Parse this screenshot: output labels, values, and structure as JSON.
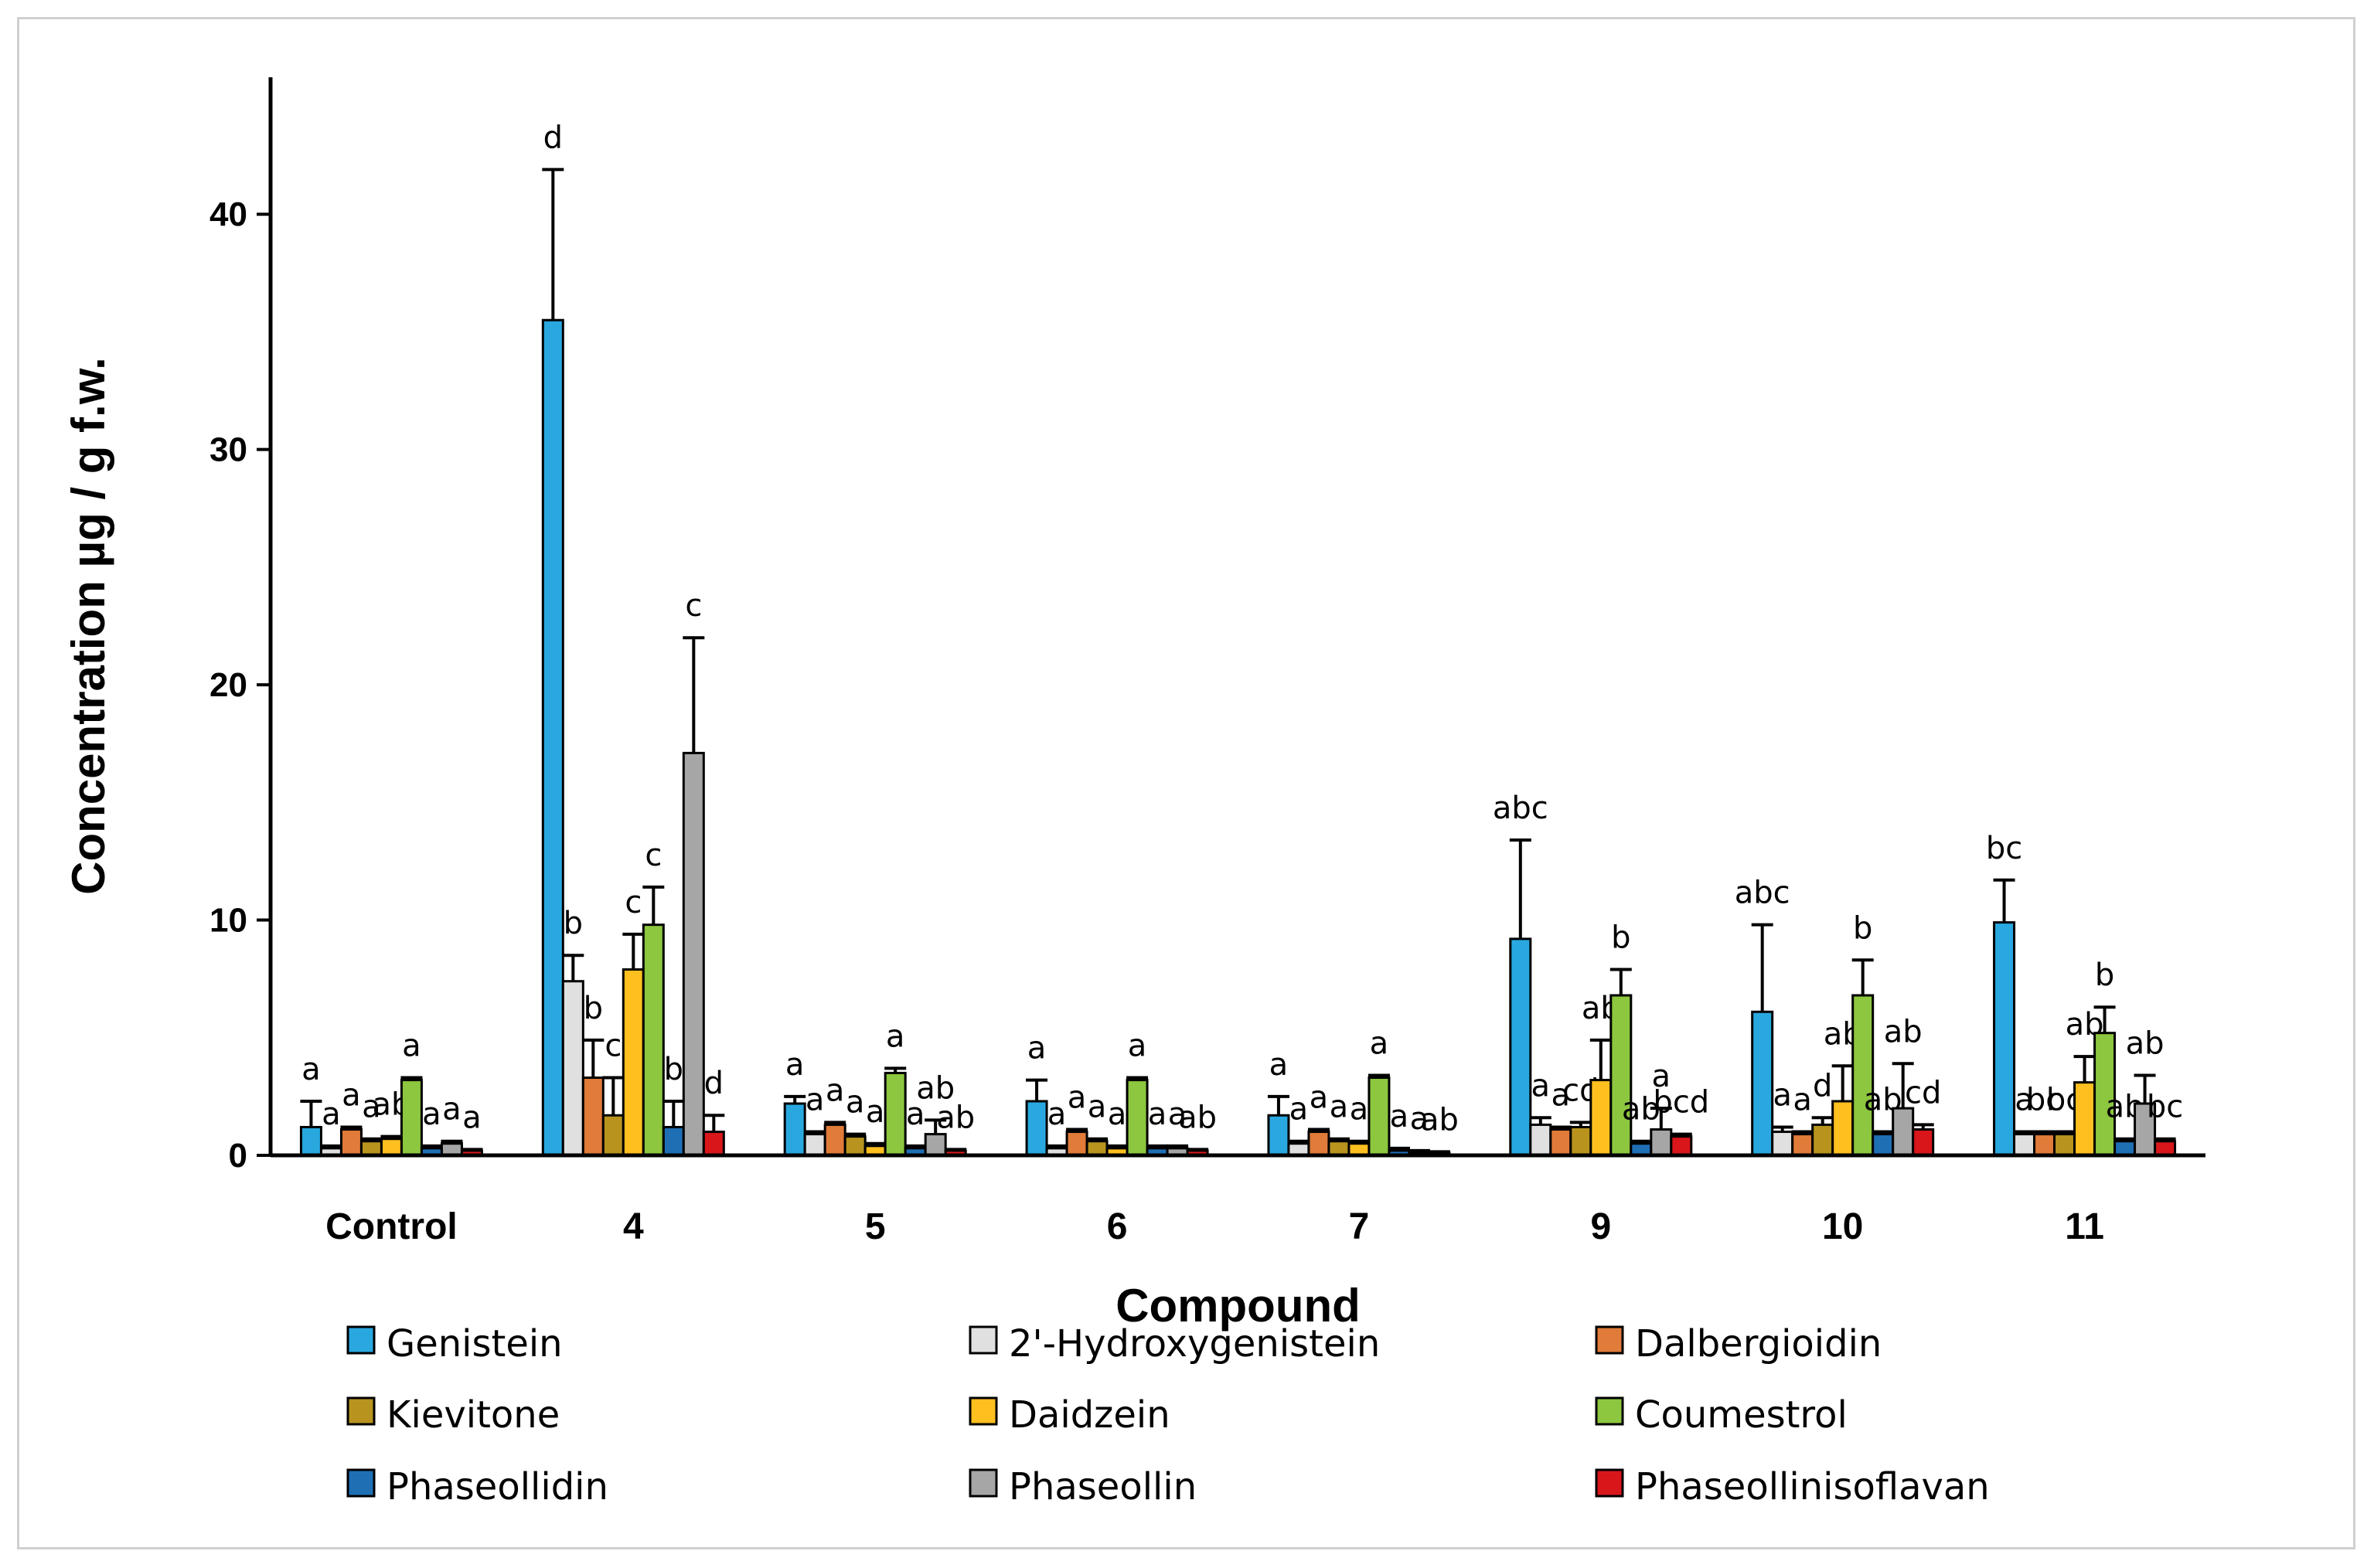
{
  "chart_data": {
    "type": "bar",
    "title": "",
    "xlabel": "Compound",
    "ylabel": "Concentration µg / g f.w.",
    "ylim": [
      0,
      45
    ],
    "yticks": [
      0,
      10,
      20,
      30,
      40
    ],
    "grid": false,
    "legend_position": "bottom",
    "categories": [
      "Control",
      "4",
      "5",
      "6",
      "7",
      "9",
      "10",
      "11"
    ],
    "series": [
      {
        "name": "Genistein",
        "color": "#29a8e0",
        "values": [
          1.2,
          35.5,
          2.2,
          2.3,
          1.7,
          9.2,
          6.1,
          9.9
        ],
        "errors": [
          1.1,
          6.4,
          0.3,
          0.9,
          0.8,
          4.2,
          3.7,
          1.8
        ],
        "labels": [
          "a",
          "d",
          "a",
          "a",
          "a",
          "abc",
          "abc",
          "bc"
        ]
      },
      {
        "name": "2'-Hydroxygenistein",
        "color": "#e0e0e0",
        "values": [
          0.3,
          7.4,
          0.9,
          0.3,
          0.5,
          1.3,
          1.0,
          0.9
        ],
        "errors": [
          0.1,
          1.1,
          0.1,
          0.1,
          0.1,
          0.3,
          0.2,
          0.1
        ],
        "labels": [
          "a",
          "b",
          "a",
          "a",
          "a",
          "a",
          "a",
          "a"
        ]
      },
      {
        "name": "Dalbergioidin",
        "color": "#e07b39",
        "values": [
          1.1,
          3.3,
          1.3,
          1.0,
          1.0,
          1.1,
          0.9,
          0.9
        ],
        "errors": [
          0.1,
          1.6,
          0.1,
          0.1,
          0.1,
          0.1,
          0.1,
          0.1
        ],
        "labels": [
          "a",
          "b",
          "a",
          "a",
          "a",
          "a",
          "a",
          "bc"
        ]
      },
      {
        "name": "Kievitone",
        "color": "#b8941f",
        "values": [
          0.6,
          1.7,
          0.8,
          0.6,
          0.6,
          1.2,
          1.3,
          0.9
        ],
        "errors": [
          0.1,
          1.6,
          0.1,
          0.1,
          0.1,
          0.2,
          0.3,
          0.1
        ],
        "labels": [
          "a",
          "c",
          "a",
          "a",
          "a",
          "cd",
          "d",
          "bc"
        ]
      },
      {
        "name": "Daidzein",
        "color": "#ffbf1f",
        "values": [
          0.7,
          7.9,
          0.4,
          0.3,
          0.5,
          3.2,
          2.3,
          3.1
        ],
        "errors": [
          0.1,
          1.5,
          0.1,
          0.1,
          0.1,
          1.7,
          1.5,
          1.1
        ],
        "labels": [
          "ab",
          "c",
          "a",
          "a",
          "a",
          "ab",
          "ab",
          "ab"
        ]
      },
      {
        "name": "Coumestrol",
        "color": "#8dc63f",
        "values": [
          3.2,
          9.8,
          3.5,
          3.2,
          3.3,
          6.8,
          6.8,
          5.2
        ],
        "errors": [
          0.1,
          1.6,
          0.2,
          0.1,
          0.1,
          1.1,
          1.5,
          1.1
        ],
        "labels": [
          "a",
          "c",
          "a",
          "a",
          "a",
          "b",
          "b",
          "b"
        ]
      },
      {
        "name": "Phaseollidin",
        "color": "#1f6fb5",
        "values": [
          0.3,
          1.2,
          0.3,
          0.3,
          0.2,
          0.5,
          0.9,
          0.6
        ],
        "errors": [
          0.1,
          1.1,
          0.1,
          0.1,
          0.1,
          0.1,
          0.1,
          0.1
        ],
        "labels": [
          "a",
          "b",
          "a",
          "a",
          "a",
          "ab",
          "ab",
          "ab"
        ]
      },
      {
        "name": "Phaseollin",
        "color": "#a6a6a6",
        "values": [
          0.5,
          17.1,
          0.9,
          0.3,
          0.1,
          1.1,
          2.0,
          2.2
        ],
        "errors": [
          0.1,
          4.9,
          0.6,
          0.1,
          0.1,
          0.9,
          1.9,
          1.2
        ],
        "labels": [
          "a",
          "c",
          "ab",
          "a",
          "a",
          "a",
          "ab",
          "ab"
        ]
      },
      {
        "name": "Phaseollinisoflavan",
        "color": "#d9171b",
        "values": [
          0.2,
          1.0,
          0.2,
          0.2,
          0.1,
          0.8,
          1.1,
          0.6
        ],
        "errors": [
          0.05,
          0.7,
          0.05,
          0.05,
          0.05,
          0.1,
          0.2,
          0.1
        ],
        "labels": [
          "a",
          "d",
          "ab",
          "ab",
          "ab",
          "bcd",
          "cd",
          "bc"
        ]
      }
    ]
  }
}
